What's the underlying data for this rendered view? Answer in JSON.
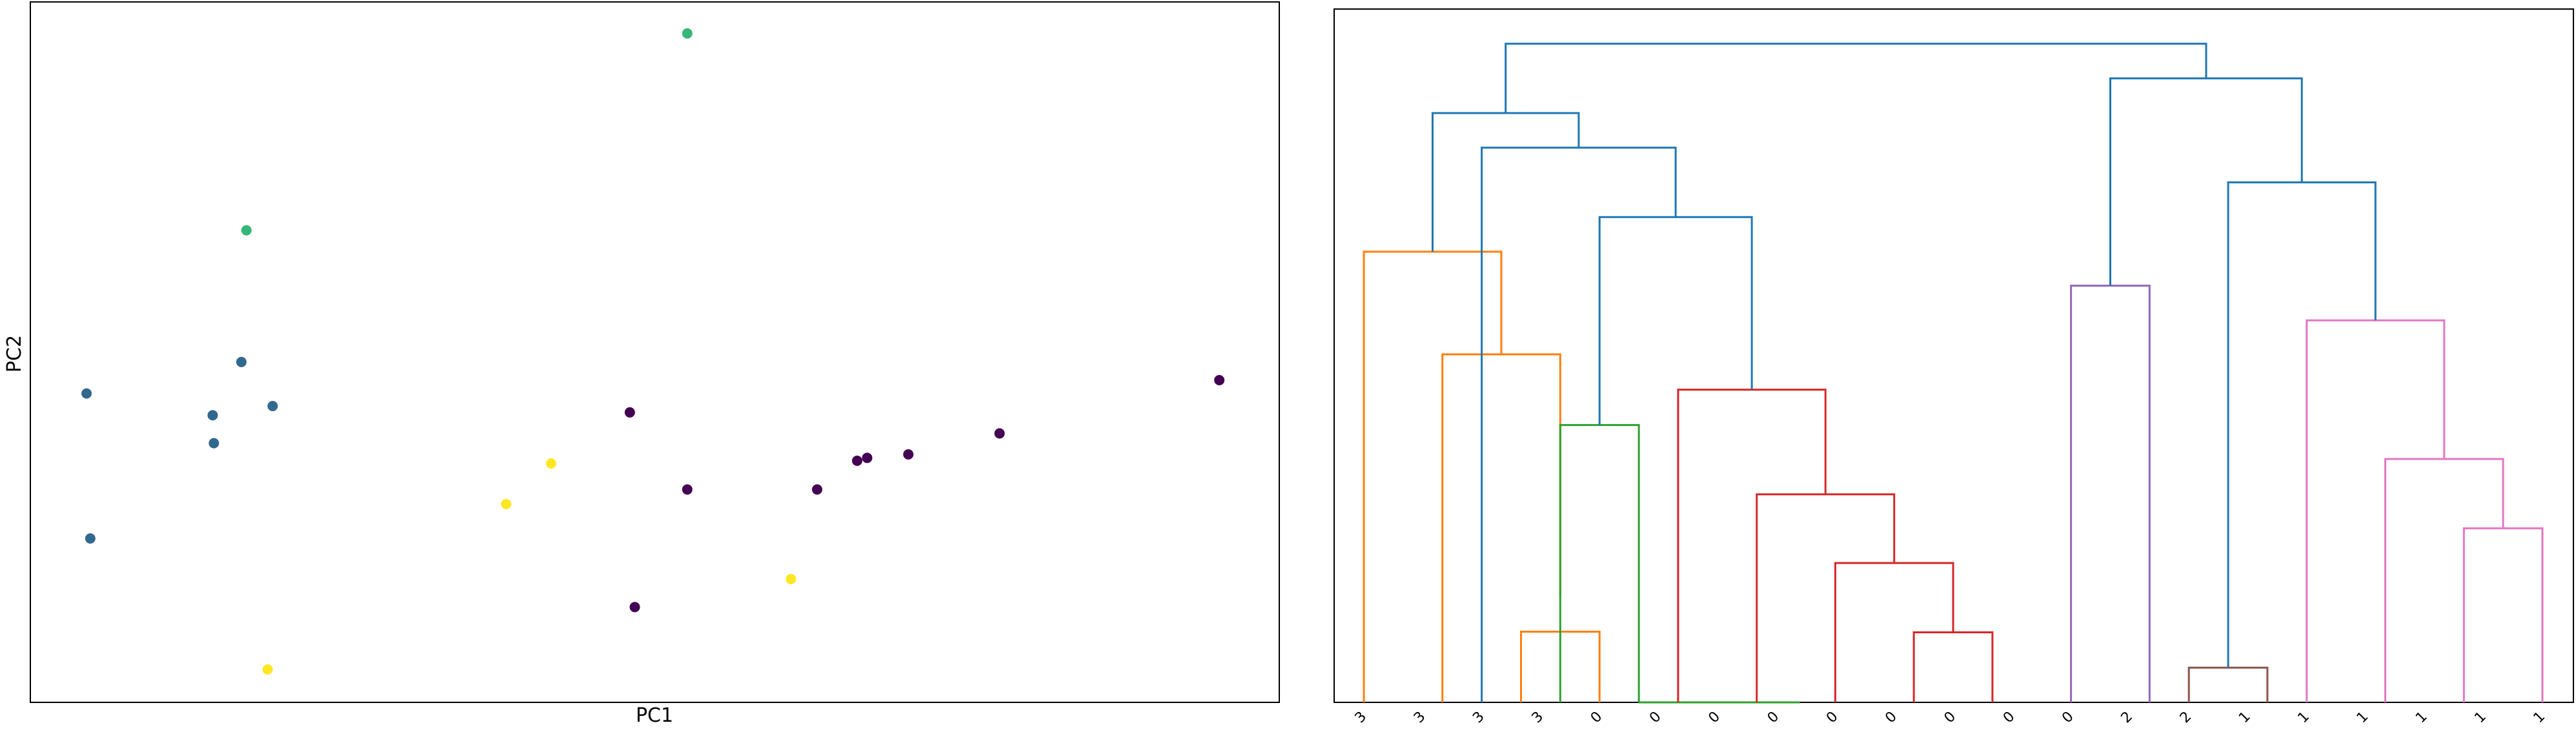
{
  "chart_data": [
    {
      "type": "scatter",
      "title": "",
      "xlabel": "PC1",
      "ylabel": "PC2",
      "xlim": [
        0,
        100
      ],
      "ylim": [
        0,
        100
      ],
      "show_ticks": false,
      "grid": false,
      "colors": [
        "#440154",
        "#31688e",
        "#35b779",
        "#fde725"
      ],
      "points": [
        {
          "x": 52.6,
          "y": 95.5,
          "c": 2
        },
        {
          "x": 17.3,
          "y": 67.4,
          "c": 2
        },
        {
          "x": 16.9,
          "y": 48.6,
          "c": 1
        },
        {
          "x": 4.5,
          "y": 44.1,
          "c": 1
        },
        {
          "x": 19.4,
          "y": 42.3,
          "c": 1
        },
        {
          "x": 14.6,
          "y": 41.0,
          "c": 1
        },
        {
          "x": 14.7,
          "y": 37.0,
          "c": 1
        },
        {
          "x": 4.8,
          "y": 23.4,
          "c": 1
        },
        {
          "x": 95.2,
          "y": 46.0,
          "c": 0
        },
        {
          "x": 48.0,
          "y": 41.4,
          "c": 0
        },
        {
          "x": 77.6,
          "y": 38.4,
          "c": 0
        },
        {
          "x": 70.3,
          "y": 35.4,
          "c": 0
        },
        {
          "x": 67.0,
          "y": 34.9,
          "c": 0
        },
        {
          "x": 66.2,
          "y": 34.5,
          "c": 0
        },
        {
          "x": 52.6,
          "y": 30.4,
          "c": 0
        },
        {
          "x": 63.0,
          "y": 30.4,
          "c": 0
        },
        {
          "x": 48.4,
          "y": 13.6,
          "c": 0
        },
        {
          "x": 41.7,
          "y": 34.1,
          "c": 3
        },
        {
          "x": 38.1,
          "y": 28.3,
          "c": 3
        },
        {
          "x": 60.9,
          "y": 17.6,
          "c": 3
        },
        {
          "x": 19.0,
          "y": 4.7,
          "c": 3
        }
      ]
    },
    {
      "type": "dendrogram",
      "title": "",
      "leaf_labels": [
        "3",
        "3",
        "3",
        "3",
        "0",
        "0",
        "0",
        "0",
        "0",
        "0",
        "0",
        "0",
        "0",
        "2",
        "2",
        "1",
        "1",
        "1",
        "1",
        "1",
        "1"
      ],
      "ylim": [
        0,
        1.0
      ],
      "links": [
        {
          "a": 7.5,
          "b": 11.6,
          "h": 0.0,
          "ha": 0.0,
          "hb": 0.0,
          "color": "#2ca02c"
        },
        {
          "a": 4.5,
          "b": 6.5,
          "h": 0.102,
          "ha": 0.0,
          "hb": 0.0,
          "color": "#ff7f0e"
        },
        {
          "a": 2.5,
          "b": 5.5,
          "h": 0.502,
          "ha": 0.0,
          "hb": 0.153,
          "color": "#ff7f0e"
        },
        {
          "a": 0.5,
          "b": 4.0,
          "h": 0.65,
          "ha": 0.0,
          "hb": 0.502,
          "color": "#ff7f0e"
        },
        {
          "a": 14.5,
          "b": 16.5,
          "h": 0.101,
          "ha": 0.0,
          "hb": 0.0,
          "color": "#d62728"
        },
        {
          "a": 12.5,
          "b": 15.5,
          "h": 0.201,
          "ha": 0.0,
          "hb": 0.101,
          "color": "#d62728"
        },
        {
          "a": 10.5,
          "b": 14.0,
          "h": 0.3,
          "ha": 0.0,
          "hb": 0.201,
          "color": "#d62728"
        },
        {
          "a": 8.5,
          "b": 12.25,
          "h": 0.451,
          "ha": 0.0,
          "hb": 0.3,
          "color": "#d62728"
        },
        {
          "a": 5.5,
          "b": 7.5,
          "h": 0.4,
          "ha": 0.0,
          "hb": 0.0,
          "color": "#2ca02c"
        },
        {
          "a": 18.5,
          "b": 20.5,
          "h": 0.601,
          "ha": 0.0,
          "hb": 0.0,
          "color": "#9467bd"
        },
        {
          "a": 21.5,
          "b": 23.5,
          "h": 0.05,
          "ha": 0.0,
          "hb": 0.0,
          "color": "#8c564b"
        },
        {
          "a": 28.5,
          "b": 30.5,
          "h": 0.251,
          "ha": 0.0,
          "hb": 0.0,
          "color": "#e377c2"
        },
        {
          "a": 26.5,
          "b": 29.5,
          "h": 0.351,
          "ha": 0.0,
          "hb": 0.251,
          "color": "#e377c2"
        },
        {
          "a": 24.5,
          "b": 28.0,
          "h": 0.551,
          "ha": 0.0,
          "hb": 0.351,
          "color": "#e377c2"
        },
        {
          "a": 6.5,
          "b": 10.375,
          "h": 0.7,
          "ha": 0.4,
          "hb": 0.451,
          "color": "#1f77b4"
        },
        {
          "a": 3.5,
          "b": 8.4375,
          "h": 0.8,
          "ha": 0.0,
          "hb": 0.7,
          "color": "#1f77b4"
        },
        {
          "a": 2.25,
          "b": 5.97,
          "h": 0.85,
          "ha": 0.65,
          "hb": 0.8,
          "color": "#1f77b4"
        },
        {
          "a": 22.5,
          "b": 26.25,
          "h": 0.75,
          "ha": 0.05,
          "hb": 0.551,
          "color": "#1f77b4"
        },
        {
          "a": 19.5,
          "b": 24.375,
          "h": 0.9,
          "ha": 0.601,
          "hb": 0.75,
          "color": "#1f77b4"
        },
        {
          "a": 4.11,
          "b": 21.94,
          "h": 0.95,
          "ha": 0.85,
          "hb": 0.9,
          "color": "#1f77b4"
        }
      ]
    }
  ]
}
